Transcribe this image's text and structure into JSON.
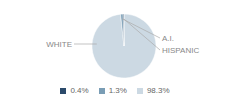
{
  "chart_data": {
    "type": "pie",
    "categories": [
      "WHITE",
      "A.I.",
      "HISPANIC"
    ],
    "values": [
      98.3,
      1.3,
      0.4
    ],
    "value_labels": [
      "98.3%",
      "1.3%",
      "0.4%"
    ],
    "colors": [
      "#ccd9e3",
      "#7a9db5",
      "#2b4a6b"
    ],
    "legend": "bottom"
  }
}
